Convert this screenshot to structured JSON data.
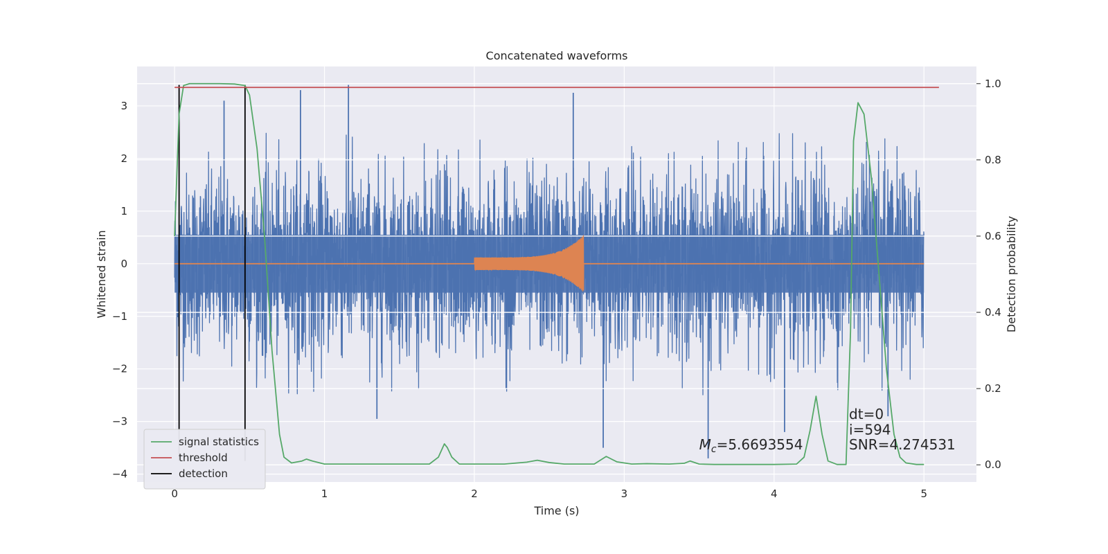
{
  "chart_data": {
    "type": "line",
    "title": "Concatenated waveforms",
    "xlabel": "Time (s)",
    "ylabel": "Whitened strain",
    "y2label": "Detection probability",
    "xlim": [
      -0.25,
      5.35
    ],
    "ylim": [
      -4.15,
      3.75
    ],
    "y2lim": [
      -0.045,
      1.045
    ],
    "xticks": [
      0,
      1,
      2,
      3,
      4,
      5
    ],
    "yticks": [
      -4,
      -3,
      -2,
      -1,
      0,
      1,
      2,
      3
    ],
    "y2ticks": [
      0.0,
      0.2,
      0.4,
      0.6,
      0.8,
      1.0
    ],
    "xtick_labels": [
      "0",
      "1",
      "2",
      "3",
      "4",
      "5"
    ],
    "ytick_labels": [
      "−4",
      "−3",
      "−2",
      "−1",
      "0",
      "1",
      "2",
      "3"
    ],
    "y2tick_labels": [
      "0.0",
      "0.2",
      "0.4",
      "0.6",
      "0.8",
      "1.0"
    ],
    "grid": true,
    "legend_position": "lower-left",
    "series": [
      {
        "name": "",
        "axis": "left",
        "color": "#4c72b0",
        "kind": "noise",
        "x_range": [
          0,
          5
        ],
        "amplitude_range": [
          -2.5,
          2.5
        ],
        "spikes": [
          {
            "x": 0.33,
            "y": 3.1
          },
          {
            "x": 0.84,
            "y": 3.3
          },
          {
            "x": 1.16,
            "y": 3.4
          },
          {
            "x": 1.35,
            "y": -2.95
          },
          {
            "x": 2.66,
            "y": 3.25
          },
          {
            "x": 2.86,
            "y": -3.5
          },
          {
            "x": 3.56,
            "y": -3.7
          },
          {
            "x": 4.07,
            "y": -3.2
          },
          {
            "x": 4.76,
            "y": -2.9
          }
        ]
      },
      {
        "name": "",
        "axis": "left",
        "color": "#dd8452",
        "kind": "chirp",
        "x_start": 2.0,
        "x_end": 2.73,
        "amplitude_start": 0.12,
        "amplitude_peak": 0.55
      },
      {
        "name": "signal statistics",
        "axis": "right",
        "color": "#55a868",
        "x": [
          0.0,
          0.03,
          0.06,
          0.1,
          0.2,
          0.3,
          0.4,
          0.47,
          0.5,
          0.55,
          0.6,
          0.65,
          0.7,
          0.73,
          0.78,
          0.85,
          0.88,
          0.92,
          1.0,
          1.2,
          1.5,
          1.7,
          1.76,
          1.8,
          1.82,
          1.85,
          1.9,
          2.0,
          2.2,
          2.35,
          2.42,
          2.5,
          2.6,
          2.8,
          2.88,
          2.95,
          3.05,
          3.15,
          3.3,
          3.4,
          3.44,
          3.5,
          3.6,
          3.8,
          4.0,
          4.15,
          4.2,
          4.24,
          4.28,
          4.32,
          4.36,
          4.42,
          4.48,
          4.51,
          4.53,
          4.56,
          4.6,
          4.65,
          4.7,
          4.75,
          4.8,
          4.84,
          4.88,
          4.95,
          5.0
        ],
        "y": [
          0.6,
          0.92,
          0.995,
          1.0,
          1.0,
          1.0,
          0.999,
          0.995,
          0.97,
          0.83,
          0.6,
          0.3,
          0.08,
          0.02,
          0.005,
          0.01,
          0.015,
          0.01,
          0.002,
          0.002,
          0.002,
          0.002,
          0.02,
          0.055,
          0.045,
          0.02,
          0.002,
          0.002,
          0.002,
          0.007,
          0.012,
          0.006,
          0.002,
          0.002,
          0.022,
          0.008,
          0.002,
          0.003,
          0.002,
          0.004,
          0.01,
          0.002,
          0.001,
          0.001,
          0.001,
          0.002,
          0.02,
          0.09,
          0.18,
          0.08,
          0.01,
          0.001,
          0.001,
          0.35,
          0.85,
          0.95,
          0.92,
          0.75,
          0.5,
          0.25,
          0.08,
          0.02,
          0.005,
          0.001,
          0.001
        ]
      },
      {
        "name": "threshold",
        "axis": "right",
        "color": "#c44e52",
        "x": [
          0.0,
          5.1
        ],
        "y": [
          0.99,
          0.99
        ]
      },
      {
        "name": "detection",
        "axis": "left",
        "color": "#000000",
        "kind": "vlines",
        "x": [
          0.03,
          0.47
        ],
        "y_range": [
          -3.75,
          3.4
        ]
      }
    ],
    "annotations": [
      {
        "text": "dt=0",
        "x": 4.5,
        "y": -2.95,
        "axis": "left"
      },
      {
        "text": "i=594",
        "x": 4.5,
        "y": -3.25,
        "axis": "left"
      },
      {
        "text": "SNR=4.274531",
        "x": 4.5,
        "y": -3.53,
        "axis": "left"
      },
      {
        "text_main": "M",
        "text_sub": "c",
        "text_rest": "=5.6693554",
        "x": 3.5,
        "y": -3.53,
        "axis": "left"
      }
    ]
  }
}
